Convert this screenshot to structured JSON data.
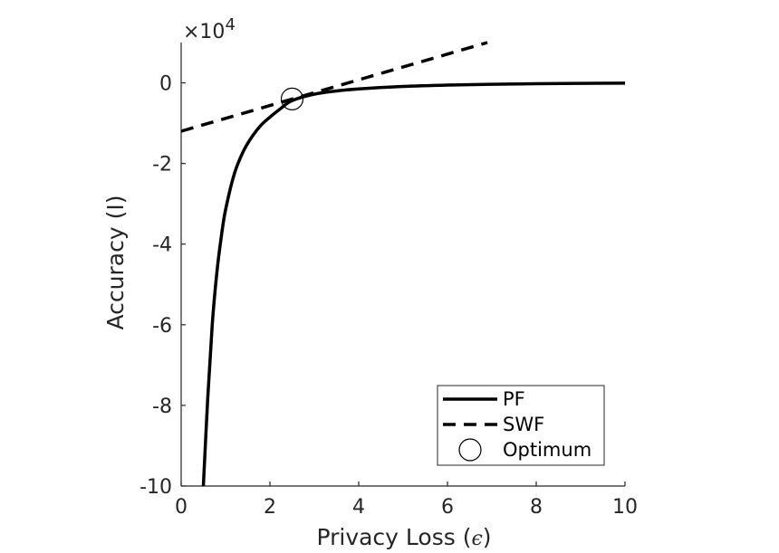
{
  "chart_data": {
    "type": "line",
    "xlabel_main": "Privacy Loss (",
    "xlabel_symbol": "ϵ",
    "xlabel_end": ")",
    "ylabel": "Accuracy (I)",
    "exponent_label": "×10",
    "exponent_power": "4",
    "xlim": [
      0,
      10
    ],
    "ylim": [
      -100000,
      10000
    ],
    "x_ticks": [
      0,
      2,
      4,
      6,
      8,
      10
    ],
    "x_tick_labels": [
      "0",
      "2",
      "4",
      "6",
      "8",
      "10"
    ],
    "y_ticks": [
      0,
      -20000,
      -40000,
      -60000,
      -80000,
      -100000
    ],
    "y_tick_labels": [
      "0",
      "-2",
      "-4",
      "-6",
      "-8",
      "-10"
    ],
    "legend_position": "bottom-right",
    "series": [
      {
        "name": "PF",
        "style": "solid",
        "color": "#000000",
        "points": [
          [
            0.5,
            -100000
          ],
          [
            0.6,
            -78000
          ],
          [
            0.7,
            -60000
          ],
          [
            0.8,
            -47500
          ],
          [
            0.9,
            -38500
          ],
          [
            1.0,
            -31500
          ],
          [
            1.2,
            -22500
          ],
          [
            1.4,
            -17000
          ],
          [
            1.6,
            -13300
          ],
          [
            1.8,
            -10500
          ],
          [
            2.0,
            -8500
          ],
          [
            2.25,
            -6300
          ],
          [
            2.5,
            -4400
          ],
          [
            3.0,
            -2800
          ],
          [
            3.5,
            -2000
          ],
          [
            4.0,
            -1500
          ],
          [
            5.0,
            -900
          ],
          [
            6.0,
            -550
          ],
          [
            7.0,
            -350
          ],
          [
            8.0,
            -220
          ],
          [
            9.0,
            -120
          ],
          [
            10.0,
            -60
          ]
        ]
      },
      {
        "name": "SWF",
        "style": "dashed",
        "color": "#000000",
        "points": [
          [
            0,
            -12000
          ],
          [
            6.9,
            10000
          ]
        ]
      },
      {
        "name": "Optimum",
        "style": "marker-circle",
        "color": "#000000",
        "points": [
          [
            2.5,
            -4000
          ]
        ]
      }
    ]
  }
}
